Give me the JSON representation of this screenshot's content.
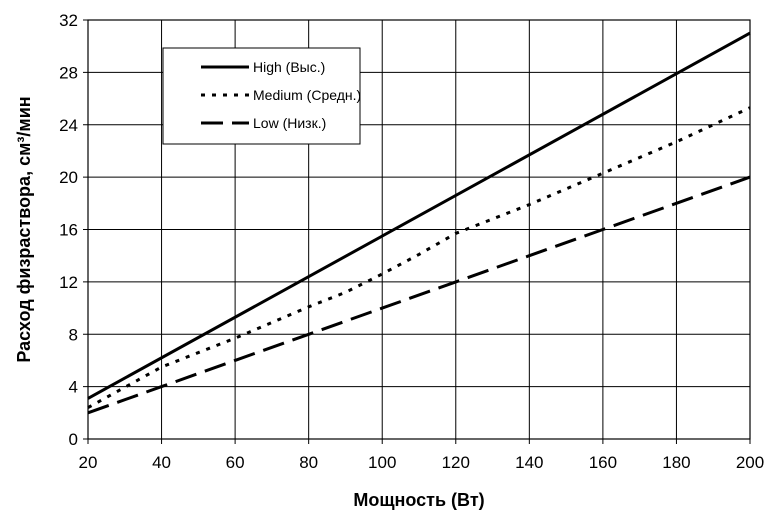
{
  "chart_data": {
    "type": "line",
    "title": "",
    "xlabel": "Мощность (Вт)",
    "ylabel": "Расход физраствора, см³/мин",
    "xlim": [
      20,
      200
    ],
    "ylim": [
      0,
      32
    ],
    "x_ticks": [
      20,
      40,
      60,
      80,
      100,
      120,
      140,
      160,
      180,
      200
    ],
    "y_ticks": [
      0,
      4,
      8,
      12,
      16,
      20,
      24,
      28,
      32
    ],
    "grid": true,
    "legend_position": "top-left inside plot",
    "series": [
      {
        "name": "High (Выс.)",
        "style": "solid",
        "color": "#000000",
        "x": [
          20,
          200
        ],
        "y": [
          3.1,
          31
        ]
      },
      {
        "name": "Medium (Средн.)",
        "style": "dotted",
        "color": "#000000",
        "x": [
          20,
          40,
          60,
          80,
          90,
          100,
          110,
          120,
          140,
          160,
          180,
          200
        ],
        "y": [
          2.4,
          5.5,
          7.7,
          10.1,
          11.2,
          12.6,
          14.1,
          15.7,
          17.9,
          20.3,
          22.7,
          25.3
        ]
      },
      {
        "name": "Low (Низк.)",
        "style": "dashed",
        "color": "#000000",
        "x": [
          20,
          40,
          60,
          80,
          100,
          120,
          140,
          160,
          180,
          200
        ],
        "y": [
          2,
          4,
          6,
          8,
          10,
          12,
          14,
          16,
          18,
          20
        ]
      }
    ]
  }
}
